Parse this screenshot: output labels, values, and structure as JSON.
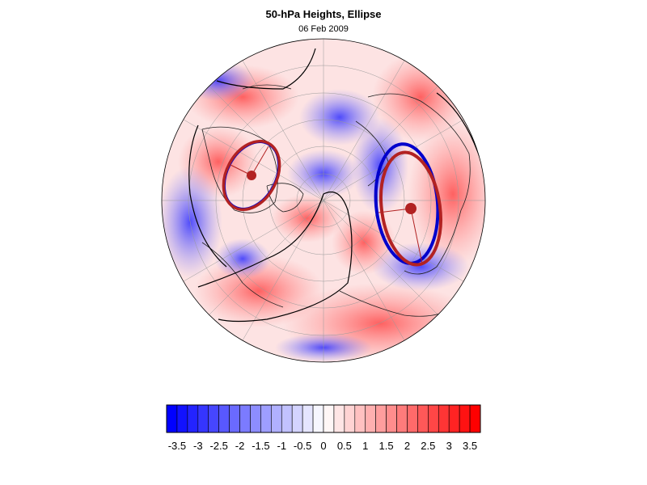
{
  "title": "50-hPa Heights, Ellipse",
  "subtitle": "06 Feb 2009",
  "colorbar": {
    "tick_labels": [
      "-3.5",
      "-3",
      "-2.5",
      "-2",
      "-1.5",
      "-1",
      "-0.5",
      "0",
      "0.5",
      "1",
      "1.5",
      "2",
      "2.5",
      "3",
      "3.5"
    ],
    "min": -3.75,
    "max": 3.75,
    "step": 0.25,
    "negative_color": "#0000ff",
    "positive_color": "#ff0000",
    "neutral_color": "#ffffff"
  },
  "map": {
    "projection": "orthographic polar (north pole)",
    "ellipse_fit_color": "#b22222",
    "ellipse_obs_color": "#0000cc",
    "contour_color": "#000000"
  }
}
